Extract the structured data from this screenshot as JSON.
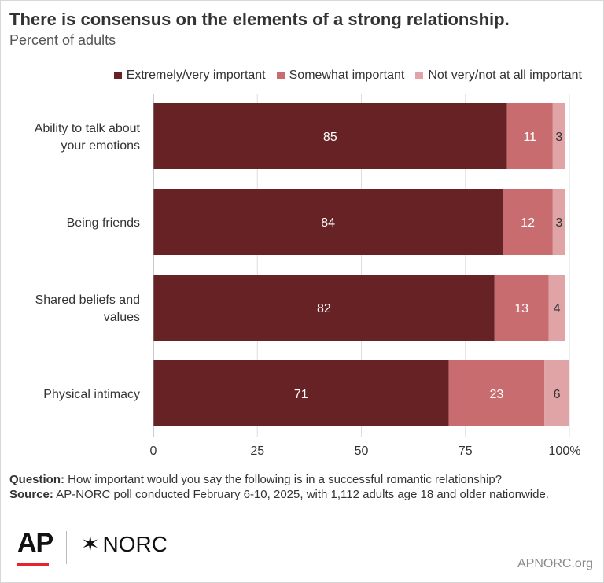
{
  "title": "There is consensus on the elements of a strong relationship.",
  "subtitle": "Percent of adults",
  "legend": [
    {
      "label": "Extremely/very important",
      "color": "#662225"
    },
    {
      "label": "Somewhat important",
      "color": "#c96c70"
    },
    {
      "label": "Not very/not at all important",
      "color": "#e0a3a6"
    }
  ],
  "notes": {
    "question_label": "Question:",
    "question_text": " How important would you say the following is in a successful romantic relationship?",
    "source_label": "Source:",
    "source_text": " AP-NORC poll conducted February 6-10, 2025, with 1,112 adults age 18 and older nationwide."
  },
  "logos": {
    "ap": "AP",
    "norc": "NORC",
    "norc_mark": "✶"
  },
  "site": "APNORC.org",
  "chart_data": {
    "type": "bar",
    "orientation": "horizontal",
    "stacked": true,
    "categories": [
      [
        "Ability to talk about",
        "your emotions"
      ],
      [
        "Being friends"
      ],
      [
        "Shared beliefs and",
        "values"
      ],
      [
        "Physical intimacy"
      ]
    ],
    "series": [
      {
        "name": "Extremely/very important",
        "values": [
          85,
          84,
          82,
          71
        ],
        "color": "#662225",
        "label_color": "#ffffff"
      },
      {
        "name": "Somewhat important",
        "values": [
          11,
          12,
          13,
          23
        ],
        "color": "#c96c70",
        "label_color": "#ffffff"
      },
      {
        "name": "Not very/not at all important",
        "values": [
          3,
          3,
          4,
          6
        ],
        "color": "#e0a3a6",
        "label_color": "#333333"
      }
    ],
    "xlim": [
      0,
      100
    ],
    "xticks": [
      0,
      25,
      50,
      75,
      100
    ],
    "xtick_suffix_last": "%",
    "grid": true
  }
}
